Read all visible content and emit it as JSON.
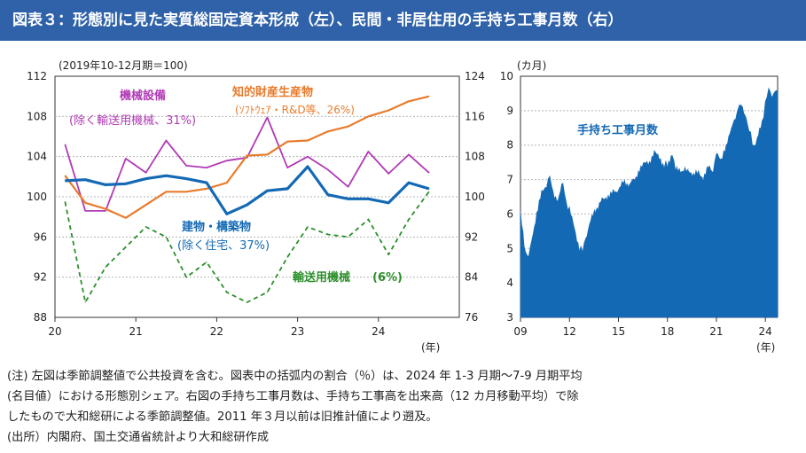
{
  "title": "図表３：形態別に見た実質総固定資本形成（左）、民間・非居住用の手持ち工事月数（右）",
  "colors": {
    "banner": "#2f62a8",
    "machinery": "#b03ab5",
    "ip": "#e87b2c",
    "construction": "#1469b4",
    "transport": "#2c8f2c",
    "backlog": "#1469b4",
    "grid": "#b5b5b5"
  },
  "notes": [
    "(注) 左図は季節調整値で公共投資を含む。図表中の括弧内の割合（％）は、2024 年 1-3 月期～7-9 月期平均",
    "(名目値）における形態別シェア。右図の手持ち工事月数は、手持ち工事高を出来高（12 カ月移動平均）で除",
    "したもので大和総研による季節調整値。2011 年３月以前は旧推計値により遡及。",
    "(出所）内閣府、国土交通省統計より大和総研作成"
  ],
  "chart_data": [
    {
      "type": "line",
      "base_note": "(2019年10-12月期＝100)",
      "xlabel": "(年)",
      "x_ticks": [
        "20",
        "21",
        "22",
        "23",
        "24"
      ],
      "periods": [
        "2020Q1",
        "2020Q2",
        "2020Q3",
        "2020Q4",
        "2021Q1",
        "2021Q2",
        "2021Q3",
        "2021Q4",
        "2022Q1",
        "2022Q2",
        "2022Q3",
        "2022Q4",
        "2023Q1",
        "2023Q2",
        "2023Q3",
        "2023Q4",
        "2024Q1",
        "2024Q2",
        "2024Q3"
      ],
      "y_left": {
        "lim": [
          88,
          112
        ],
        "ticks": [
          "88",
          "92",
          "96",
          "100",
          "104",
          "108",
          "112"
        ]
      },
      "y_right": {
        "lim": [
          76,
          124
        ],
        "ticks": [
          "76",
          "84",
          "92",
          "100",
          "108",
          "116",
          "124"
        ]
      },
      "series": [
        {
          "name": "機械設備",
          "share": "(除く輸送用機械、31%)",
          "axis": "left",
          "style": "solid",
          "values": [
            105.2,
            98.6,
            98.6,
            103.8,
            102.4,
            105.6,
            103.1,
            102.9,
            103.6,
            103.9,
            107.9,
            102.9,
            104.0,
            102.7,
            101.0,
            104.5,
            102.3,
            104.2,
            102.4
          ]
        },
        {
          "name": "知的財産生産物",
          "share": "(ｿﾌﾄｳｪｱ・R&D等、26%)",
          "axis": "left",
          "style": "solid",
          "values": [
            102.1,
            99.4,
            98.8,
            97.9,
            99.2,
            100.5,
            100.5,
            100.8,
            101.4,
            104.1,
            104.2,
            105.5,
            105.6,
            106.5,
            107.0,
            108.0,
            108.6,
            109.5,
            110.0
          ]
        },
        {
          "name": "建物・構築物",
          "share": "(除く住宅、37%)",
          "axis": "left",
          "style": "solid",
          "values": [
            101.6,
            101.7,
            101.2,
            101.3,
            101.8,
            102.1,
            101.8,
            101.4,
            98.3,
            99.2,
            100.6,
            100.8,
            103.0,
            100.2,
            99.8,
            99.8,
            99.4,
            101.4,
            100.8
          ]
        },
        {
          "name": "輸送用機械",
          "share": "(6%)",
          "axis": "right",
          "style": "dashed",
          "values": [
            99.0,
            79.0,
            86.0,
            90.0,
            94.0,
            92.0,
            84.0,
            87.0,
            81.0,
            79.0,
            81.0,
            88.0,
            94.0,
            92.5,
            92.0,
            95.5,
            88.5,
            95.5,
            101.0
          ]
        }
      ]
    },
    {
      "type": "area",
      "name": "手持ち工事月数",
      "ylabel": "(カ月)",
      "xlabel": "(年)",
      "x_ticks": [
        "09",
        "12",
        "15",
        "18",
        "21",
        "24"
      ],
      "ylim": [
        3,
        10
      ],
      "y_ticks": [
        "3",
        "4",
        "5",
        "6",
        "7",
        "8",
        "9",
        "10"
      ],
      "x_range": [
        2009.0,
        2024.75
      ],
      "points": [
        [
          2009.0,
          6.0
        ],
        [
          2009.3,
          4.9
        ],
        [
          2009.5,
          4.75
        ],
        [
          2009.7,
          5.3
        ],
        [
          2010.0,
          6.0
        ],
        [
          2010.3,
          6.6
        ],
        [
          2010.6,
          6.85
        ],
        [
          2010.8,
          7.1
        ],
        [
          2011.0,
          6.6
        ],
        [
          2011.3,
          6.4
        ],
        [
          2011.6,
          6.9
        ],
        [
          2011.8,
          6.3
        ],
        [
          2012.0,
          6.1
        ],
        [
          2012.3,
          5.6
        ],
        [
          2012.6,
          5.0
        ],
        [
          2012.8,
          4.95
        ],
        [
          2013.0,
          5.3
        ],
        [
          2013.3,
          5.8
        ],
        [
          2013.6,
          6.1
        ],
        [
          2014.0,
          6.4
        ],
        [
          2014.3,
          6.5
        ],
        [
          2014.6,
          6.6
        ],
        [
          2015.0,
          6.7
        ],
        [
          2015.3,
          6.9
        ],
        [
          2015.6,
          6.85
        ],
        [
          2016.0,
          7.0
        ],
        [
          2016.3,
          7.3
        ],
        [
          2016.6,
          7.45
        ],
        [
          2016.9,
          7.5
        ],
        [
          2017.2,
          7.8
        ],
        [
          2017.5,
          7.6
        ],
        [
          2017.8,
          7.4
        ],
        [
          2018.0,
          7.45
        ],
        [
          2018.3,
          7.7
        ],
        [
          2018.5,
          7.3
        ],
        [
          2018.8,
          7.2
        ],
        [
          2019.0,
          7.25
        ],
        [
          2019.3,
          7.3
        ],
        [
          2019.6,
          7.1
        ],
        [
          2019.9,
          7.2
        ],
        [
          2020.2,
          7.05
        ],
        [
          2020.5,
          7.35
        ],
        [
          2020.8,
          7.2
        ],
        [
          2021.0,
          7.8
        ],
        [
          2021.3,
          7.6
        ],
        [
          2021.6,
          7.9
        ],
        [
          2021.9,
          8.5
        ],
        [
          2022.1,
          8.7
        ],
        [
          2022.4,
          9.2
        ],
        [
          2022.6,
          9.1
        ],
        [
          2022.9,
          8.6
        ],
        [
          2023.1,
          8.3
        ],
        [
          2023.3,
          7.9
        ],
        [
          2023.5,
          8.2
        ],
        [
          2023.8,
          8.6
        ],
        [
          2024.0,
          9.2
        ],
        [
          2024.2,
          9.65
        ],
        [
          2024.4,
          9.4
        ],
        [
          2024.6,
          9.55
        ],
        [
          2024.75,
          9.5
        ]
      ]
    }
  ]
}
